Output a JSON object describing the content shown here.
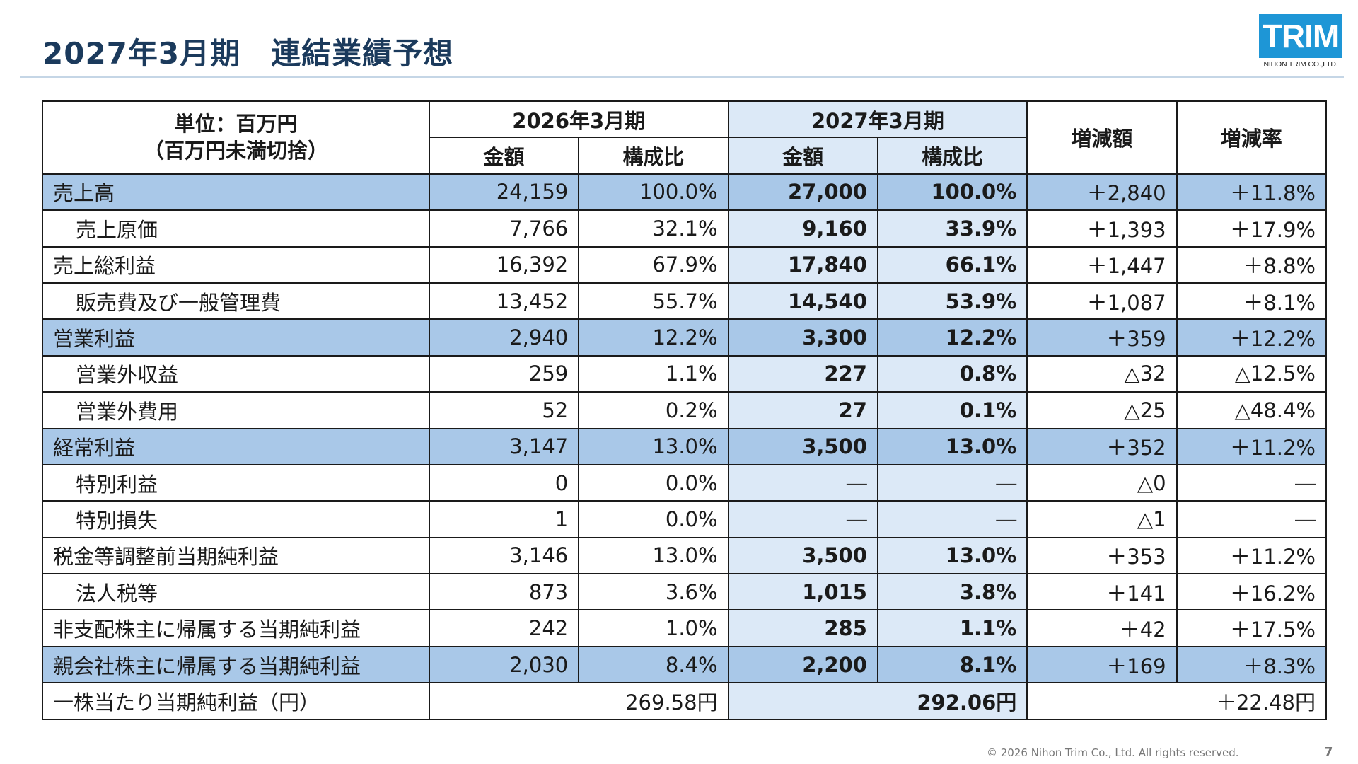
{
  "title": "2027年3月期　連結業績予想",
  "logo": {
    "text": "TRIM",
    "subtitle": "NIHON TRIM CO.,LTD."
  },
  "header": {
    "unit_line1": "単位：百万円",
    "unit_line2": "（百万円未満切捨）",
    "period_2026": "2026年3月期",
    "period_2027": "2027年3月期",
    "amount": "金額",
    "ratio": "構成比",
    "change_amount": "増減額",
    "change_rate": "増減率"
  },
  "rows": [
    {
      "label": "売上高",
      "a26": "24,159",
      "r26": "100.0%",
      "a27": "27,000",
      "r27": "100.0%",
      "chg": "＋2,840",
      "rate": "＋11.8%"
    },
    {
      "label": "売上原価",
      "a26": "7,766",
      "r26": "32.1%",
      "a27": "9,160",
      "r27": "33.9%",
      "chg": "＋1,393",
      "rate": "＋17.9%"
    },
    {
      "label": "売上総利益",
      "a26": "16,392",
      "r26": "67.9%",
      "a27": "17,840",
      "r27": "66.1%",
      "chg": "＋1,447",
      "rate": "＋8.8%"
    },
    {
      "label": "販売費及び一般管理費",
      "a26": "13,452",
      "r26": "55.7%",
      "a27": "14,540",
      "r27": "53.9%",
      "chg": "＋1,087",
      "rate": "＋8.1%"
    },
    {
      "label": "営業利益",
      "a26": "2,940",
      "r26": "12.2%",
      "a27": "3,300",
      "r27": "12.2%",
      "chg": "＋359",
      "rate": "＋12.2%"
    },
    {
      "label": "営業外収益",
      "a26": "259",
      "r26": "1.1%",
      "a27": "227",
      "r27": "0.8%",
      "chg": "△32",
      "rate": "△12.5%"
    },
    {
      "label": "営業外費用",
      "a26": "52",
      "r26": "0.2%",
      "a27": "27",
      "r27": "0.1%",
      "chg": "△25",
      "rate": "△48.4%"
    },
    {
      "label": "経常利益",
      "a26": "3,147",
      "r26": "13.0%",
      "a27": "3,500",
      "r27": "13.0%",
      "chg": "＋352",
      "rate": "＋11.2%"
    },
    {
      "label": "特別利益",
      "a26": "0",
      "r26": "0.0%",
      "a27": "―",
      "r27": "―",
      "chg": "△0",
      "rate": "―"
    },
    {
      "label": "特別損失",
      "a26": "1",
      "r26": "0.0%",
      "a27": "―",
      "r27": "―",
      "chg": "△1",
      "rate": "―"
    },
    {
      "label": "税金等調整前当期純利益",
      "a26": "3,146",
      "r26": "13.0%",
      "a27": "3,500",
      "r27": "13.0%",
      "chg": "＋353",
      "rate": "＋11.2%"
    },
    {
      "label": "法人税等",
      "a26": "873",
      "r26": "3.6%",
      "a27": "1,015",
      "r27": "3.8%",
      "chg": "＋141",
      "rate": "＋16.2%"
    },
    {
      "label": "非支配株主に帰属する当期純利益",
      "a26": "242",
      "r26": "1.0%",
      "a27": "285",
      "r27": "1.1%",
      "chg": "＋42",
      "rate": "＋17.5%"
    },
    {
      "label": "親会社株主に帰属する当期純利益",
      "a26": "2,030",
      "r26": "8.4%",
      "a27": "2,200",
      "r27": "8.1%",
      "chg": "＋169",
      "rate": "＋8.3%"
    }
  ],
  "eps": {
    "label": "一株当たり当期純利益（円）",
    "v26": "269.58円",
    "v27": "292.06円",
    "chg": "＋22.48円"
  },
  "footer": {
    "copyright": "© 2026 Nihon Trim Co., Ltd. All rights reserved.",
    "page": "7"
  },
  "colors": {
    "highlight_row": "#a9c8e8",
    "forecast_column": "#dce9f7",
    "title": "#1b3a5c",
    "logo": "#1e96d6"
  }
}
